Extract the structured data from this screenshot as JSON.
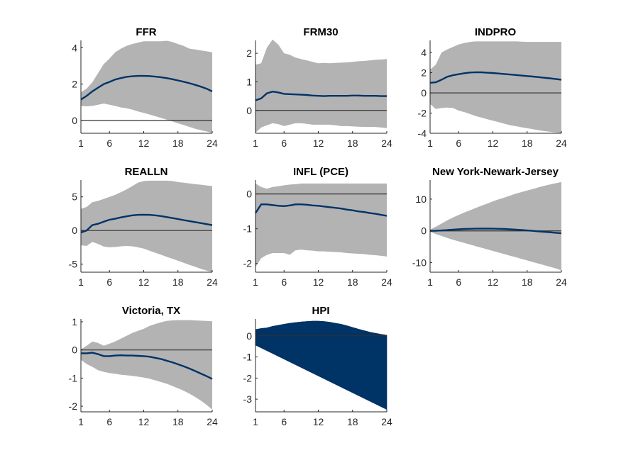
{
  "colors": {
    "band": "#b3b3b3",
    "median": "#003366",
    "zero": "#333333",
    "axis": "#262626"
  },
  "chart_data": [
    {
      "type": "area",
      "title": "FFR",
      "x": [
        1,
        2,
        3,
        4,
        5,
        6,
        7,
        8,
        9,
        10,
        11,
        12,
        13,
        14,
        15,
        16,
        17,
        18,
        19,
        20,
        21,
        22,
        23,
        24
      ],
      "xticks": [
        1,
        6,
        12,
        18,
        24
      ],
      "ylim": [
        -0.7,
        4.4
      ],
      "yticks": [
        0,
        2,
        4
      ],
      "median": [
        1.15,
        1.35,
        1.6,
        1.8,
        2.0,
        2.12,
        2.25,
        2.33,
        2.4,
        2.43,
        2.45,
        2.45,
        2.44,
        2.41,
        2.38,
        2.33,
        2.27,
        2.2,
        2.13,
        2.05,
        1.96,
        1.86,
        1.75,
        1.6
      ],
      "lower": [
        0.8,
        0.78,
        0.8,
        0.87,
        0.93,
        0.87,
        0.8,
        0.72,
        0.67,
        0.6,
        0.5,
        0.42,
        0.33,
        0.24,
        0.15,
        0.05,
        -0.05,
        -0.15,
        -0.25,
        -0.35,
        -0.45,
        -0.53,
        -0.6,
        -0.67
      ],
      "upper": [
        1.55,
        1.75,
        2.1,
        2.6,
        3.1,
        3.4,
        3.75,
        3.95,
        4.1,
        4.2,
        4.28,
        4.35,
        4.35,
        4.35,
        4.35,
        4.38,
        4.32,
        4.2,
        4.1,
        3.95,
        3.9,
        3.85,
        3.8,
        3.75
      ]
    },
    {
      "type": "area",
      "title": "FRM30",
      "x": [
        1,
        2,
        3,
        4,
        5,
        6,
        7,
        8,
        9,
        10,
        11,
        12,
        13,
        14,
        15,
        16,
        17,
        18,
        19,
        20,
        21,
        22,
        23,
        24
      ],
      "xticks": [
        1,
        6,
        12,
        18,
        24
      ],
      "ylim": [
        -0.8,
        2.45
      ],
      "yticks": [
        0,
        1,
        2
      ],
      "median": [
        0.35,
        0.42,
        0.6,
        0.66,
        0.63,
        0.58,
        0.57,
        0.56,
        0.55,
        0.54,
        0.52,
        0.51,
        0.5,
        0.51,
        0.51,
        0.51,
        0.51,
        0.52,
        0.52,
        0.51,
        0.51,
        0.51,
        0.5,
        0.5
      ],
      "lower": [
        -0.78,
        -0.6,
        -0.52,
        -0.45,
        -0.48,
        -0.55,
        -0.5,
        -0.45,
        -0.45,
        -0.47,
        -0.5,
        -0.5,
        -0.5,
        -0.5,
        -0.52,
        -0.55,
        -0.55,
        -0.56,
        -0.57,
        -0.58,
        -0.58,
        -0.58,
        -0.6,
        -0.62
      ],
      "upper": [
        1.6,
        1.65,
        2.2,
        2.48,
        2.3,
        2.0,
        1.95,
        1.85,
        1.8,
        1.75,
        1.7,
        1.65,
        1.66,
        1.65,
        1.66,
        1.67,
        1.68,
        1.7,
        1.72,
        1.73,
        1.75,
        1.77,
        1.78,
        1.8
      ]
    },
    {
      "type": "area",
      "title": "INDPRO",
      "x": [
        1,
        2,
        3,
        4,
        5,
        6,
        7,
        8,
        9,
        10,
        11,
        12,
        13,
        14,
        15,
        16,
        17,
        18,
        19,
        20,
        21,
        22,
        23,
        24
      ],
      "xticks": [
        1,
        6,
        12,
        18,
        24
      ],
      "ylim": [
        -4.0,
        5.2
      ],
      "yticks": [
        -4,
        -2,
        0,
        2,
        4
      ],
      "median": [
        1.0,
        1.05,
        1.3,
        1.6,
        1.75,
        1.85,
        1.95,
        2.02,
        2.05,
        2.04,
        2.0,
        1.97,
        1.92,
        1.87,
        1.82,
        1.77,
        1.72,
        1.67,
        1.62,
        1.56,
        1.5,
        1.44,
        1.38,
        1.3
      ],
      "lower": [
        -1.1,
        -1.6,
        -1.5,
        -1.45,
        -1.5,
        -1.75,
        -1.9,
        -2.1,
        -2.3,
        -2.45,
        -2.6,
        -2.75,
        -2.9,
        -3.05,
        -3.2,
        -3.3,
        -3.4,
        -3.5,
        -3.6,
        -3.7,
        -3.78,
        -3.85,
        -3.92,
        -3.97
      ],
      "upper": [
        2.3,
        2.8,
        4.0,
        4.3,
        4.55,
        4.8,
        4.95,
        5.05,
        5.1,
        5.1,
        5.1,
        5.1,
        5.1,
        5.1,
        5.1,
        5.1,
        5.08,
        5.05,
        5.05,
        5.05,
        5.05,
        5.05,
        5.05,
        5.05
      ]
    },
    {
      "type": "area",
      "title": "REALLN",
      "x": [
        1,
        2,
        3,
        4,
        5,
        6,
        7,
        8,
        9,
        10,
        11,
        12,
        13,
        14,
        15,
        16,
        17,
        18,
        19,
        20,
        21,
        22,
        23,
        24
      ],
      "xticks": [
        1,
        6,
        12,
        18,
        24
      ],
      "ylim": [
        -6.2,
        7.5
      ],
      "yticks": [
        -5,
        0,
        5
      ],
      "median": [
        -0.3,
        0.0,
        0.8,
        1.0,
        1.3,
        1.6,
        1.75,
        1.95,
        2.1,
        2.25,
        2.33,
        2.35,
        2.33,
        2.25,
        2.15,
        2.0,
        1.85,
        1.7,
        1.55,
        1.4,
        1.25,
        1.1,
        0.95,
        0.8
      ],
      "lower": [
        -2.2,
        -2.3,
        -1.7,
        -2.0,
        -2.4,
        -2.5,
        -2.45,
        -2.35,
        -2.3,
        -2.35,
        -2.5,
        -2.7,
        -3.0,
        -3.3,
        -3.6,
        -3.9,
        -4.2,
        -4.5,
        -4.8,
        -5.1,
        -5.4,
        -5.7,
        -5.95,
        -6.2
      ],
      "upper": [
        3.2,
        3.5,
        4.2,
        4.4,
        4.7,
        5.0,
        5.3,
        5.7,
        6.1,
        6.6,
        7.1,
        7.35,
        7.4,
        7.4,
        7.4,
        7.4,
        7.35,
        7.2,
        7.1,
        7.0,
        6.9,
        6.8,
        6.7,
        6.6
      ]
    },
    {
      "type": "area",
      "title": "INFL (PCE)",
      "x": [
        1,
        2,
        3,
        4,
        5,
        6,
        7,
        8,
        9,
        10,
        11,
        12,
        13,
        14,
        15,
        16,
        17,
        18,
        19,
        20,
        21,
        22,
        23,
        24
      ],
      "xticks": [
        1,
        6,
        12,
        18,
        24
      ],
      "ylim": [
        -2.25,
        0.4
      ],
      "yticks": [
        -2,
        -1,
        0
      ],
      "median": [
        -0.55,
        -0.3,
        -0.3,
        -0.32,
        -0.34,
        -0.35,
        -0.33,
        -0.3,
        -0.3,
        -0.31,
        -0.33,
        -0.34,
        -0.36,
        -0.38,
        -0.4,
        -0.42,
        -0.45,
        -0.47,
        -0.5,
        -0.52,
        -0.55,
        -0.57,
        -0.6,
        -0.63
      ],
      "lower": [
        -2.1,
        -1.85,
        -1.75,
        -1.7,
        -1.7,
        -1.7,
        -1.75,
        -1.62,
        -1.6,
        -1.62,
        -1.63,
        -1.65,
        -1.65,
        -1.66,
        -1.67,
        -1.68,
        -1.7,
        -1.71,
        -1.72,
        -1.73,
        -1.75,
        -1.76,
        -1.78,
        -1.8
      ],
      "upper": [
        0.3,
        0.2,
        0.15,
        0.2,
        0.22,
        0.25,
        0.27,
        0.28,
        0.3,
        0.3,
        0.3,
        0.3,
        0.3,
        0.3,
        0.3,
        0.3,
        0.3,
        0.3,
        0.3,
        0.3,
        0.3,
        0.3,
        0.3,
        0.3
      ]
    },
    {
      "type": "area",
      "title": "New York-Newark-Jersey",
      "x": [
        1,
        2,
        3,
        4,
        5,
        6,
        7,
        8,
        9,
        10,
        11,
        12,
        13,
        14,
        15,
        16,
        17,
        18,
        19,
        20,
        21,
        22,
        23,
        24
      ],
      "xticks": [
        1,
        6,
        12,
        18,
        24
      ],
      "ylim": [
        -13.0,
        16.0
      ],
      "yticks": [
        -10,
        0,
        10
      ],
      "median": [
        0.0,
        0.05,
        0.15,
        0.25,
        0.4,
        0.5,
        0.6,
        0.65,
        0.7,
        0.72,
        0.72,
        0.7,
        0.65,
        0.6,
        0.5,
        0.4,
        0.3,
        0.15,
        0.0,
        -0.15,
        -0.3,
        -0.45,
        -0.6,
        -0.75
      ],
      "lower": [
        -0.3,
        -1.0,
        -1.6,
        -2.2,
        -2.8,
        -3.3,
        -3.8,
        -4.3,
        -4.8,
        -5.3,
        -5.8,
        -6.3,
        -6.8,
        -7.3,
        -7.8,
        -8.3,
        -8.8,
        -9.3,
        -9.8,
        -10.3,
        -10.8,
        -11.3,
        -11.8,
        -12.4
      ],
      "upper": [
        0.4,
        1.3,
        2.3,
        3.3,
        4.2,
        5.0,
        5.8,
        6.5,
        7.2,
        7.9,
        8.6,
        9.3,
        9.9,
        10.5,
        11.1,
        11.7,
        12.2,
        12.7,
        13.2,
        13.7,
        14.2,
        14.6,
        15.0,
        15.4
      ]
    },
    {
      "type": "area",
      "title": "Victoria, TX",
      "x": [
        1,
        2,
        3,
        4,
        5,
        6,
        7,
        8,
        9,
        10,
        11,
        12,
        13,
        14,
        15,
        16,
        17,
        18,
        19,
        20,
        21,
        22,
        23,
        24
      ],
      "xticks": [
        1,
        6,
        12,
        18,
        24
      ],
      "ylim": [
        -2.2,
        1.1
      ],
      "yticks": [
        -2,
        -1,
        0,
        1
      ],
      "median": [
        -0.12,
        -0.12,
        -0.1,
        -0.15,
        -0.22,
        -0.22,
        -0.2,
        -0.19,
        -0.2,
        -0.2,
        -0.21,
        -0.22,
        -0.24,
        -0.28,
        -0.32,
        -0.38,
        -0.44,
        -0.51,
        -0.58,
        -0.66,
        -0.75,
        -0.84,
        -0.93,
        -1.03
      ],
      "lower": [
        -0.35,
        -0.5,
        -0.6,
        -0.72,
        -0.78,
        -0.82,
        -0.85,
        -0.88,
        -0.9,
        -0.92,
        -0.95,
        -0.98,
        -1.02,
        -1.08,
        -1.14,
        -1.2,
        -1.28,
        -1.36,
        -1.45,
        -1.55,
        -1.67,
        -1.8,
        -1.95,
        -2.12
      ],
      "upper": [
        0.02,
        0.15,
        0.3,
        0.25,
        0.15,
        0.22,
        0.3,
        0.4,
        0.5,
        0.6,
        0.68,
        0.75,
        0.85,
        0.92,
        0.98,
        1.03,
        1.05,
        1.06,
        1.06,
        1.06,
        1.05,
        1.04,
        1.03,
        1.02
      ]
    },
    {
      "type": "area",
      "title": "HPI",
      "x": [
        1,
        2,
        3,
        4,
        5,
        6,
        7,
        8,
        9,
        10,
        11,
        12,
        13,
        14,
        15,
        16,
        17,
        18,
        19,
        20,
        21,
        22,
        23,
        24
      ],
      "xticks": [
        1,
        6,
        12,
        18,
        24
      ],
      "ylim": [
        -3.6,
        0.8
      ],
      "yticks": [
        -3,
        -2,
        -1,
        0
      ],
      "median": [
        -0.05,
        -0.05,
        -0.05,
        -0.05,
        -0.05,
        -0.05,
        -0.05,
        -0.05,
        -0.05,
        -0.05,
        -0.05,
        -0.05,
        -0.05,
        -0.05,
        -0.05,
        -0.05,
        -0.05,
        -0.05,
        -0.05,
        -0.05,
        -0.05,
        -0.05,
        -0.05,
        -0.05
      ],
      "lower": [
        -0.45,
        -0.4,
        -0.35,
        -0.45,
        -0.48,
        -0.5,
        -0.5,
        -0.52,
        -0.52,
        -0.55,
        -0.55,
        -0.58,
        -0.62,
        -0.65,
        -0.7,
        -0.75,
        -0.82,
        -1.0,
        -1.3,
        -1.7,
        -2.1,
        -2.55,
        -3.0,
        -3.5
      ],
      "upper": [
        0.3,
        0.35,
        0.38,
        0.45,
        0.5,
        0.55,
        0.6,
        0.63,
        0.66,
        0.68,
        0.7,
        0.7,
        0.68,
        0.65,
        0.6,
        0.55,
        0.48,
        0.4,
        0.32,
        0.25,
        0.18,
        0.12,
        0.07,
        0.03
      ]
    }
  ]
}
